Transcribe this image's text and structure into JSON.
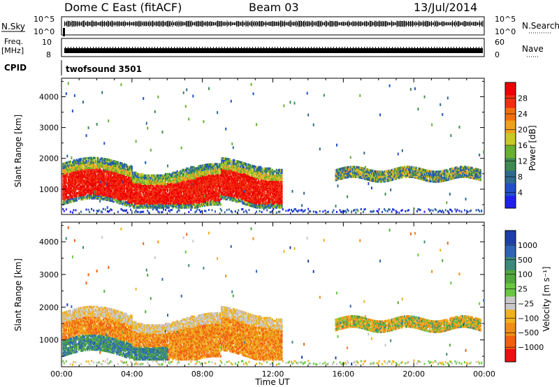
{
  "header": {
    "station": "Dome C East (fitACF)",
    "beam": "Beam 03",
    "date": "13/Jul/2014"
  },
  "top_panels": {
    "nsky_label": "N.Sky",
    "nsky_ticks": [
      "10^5",
      "10^0"
    ],
    "nsearch_label": "N.Search",
    "nsearch_ticks": [
      "10^5",
      "10^0"
    ],
    "freq_label_1": "Freq.",
    "freq_label_2": "[MHz]",
    "freq_ticks": [
      "10",
      "8"
    ],
    "nave_label": "Nave",
    "nave_ticks": [
      "60",
      "0"
    ],
    "cpid_label": "CPID",
    "cpid_value": "twofsound 3501"
  },
  "chart_data": [
    {
      "type": "heatmap",
      "name_shown": "Power",
      "ylabel": "Slant Range [km]",
      "xlabel": "",
      "x_ticks": [
        "00:00",
        "04:00",
        "08:00",
        "12:00",
        "16:00",
        "20:00",
        "00:00"
      ],
      "y_ticks": [
        1000,
        2000,
        3000,
        4000
      ],
      "xlim_hours": [
        0,
        24
      ],
      "ylim_km": [
        180,
        4600
      ],
      "colorbar_label": "Power [dB]",
      "colorbar_ticks": [
        4,
        8,
        12,
        16,
        20,
        24,
        28
      ],
      "colorbar_range": [
        0,
        30
      ],
      "colorbar_colors": [
        "#2020ee",
        "#2050c8",
        "#2e6b8e",
        "#3e8a52",
        "#68b030",
        "#c8c828",
        "#f0a020",
        "#f07010",
        "#f03010",
        "#ee0000"
      ]
    },
    {
      "type": "heatmap",
      "name_shown": "Velocity",
      "ylabel": "Slant Range [km]",
      "xlabel": "Time UT",
      "x_ticks": [
        "00:00",
        "04:00",
        "08:00",
        "12:00",
        "16:00",
        "20:00",
        "00:00"
      ],
      "y_ticks": [
        1000,
        2000,
        3000,
        4000
      ],
      "xlim_hours": [
        0,
        24
      ],
      "ylim_km": [
        180,
        4600
      ],
      "colorbar_label": "Velocity [m s⁻¹]",
      "colorbar_ticks": [
        "1000",
        "500",
        "100",
        "25",
        "−25",
        "−100",
        "−500",
        "−1000"
      ],
      "colorbar_colors": [
        "#1c3ea8",
        "#2e64b8",
        "#3c8a7c",
        "#50a83c",
        "#68c840",
        "#c8c8c8",
        "#f0b020",
        "#f08c18",
        "#f06010",
        "#ee1010"
      ]
    }
  ]
}
